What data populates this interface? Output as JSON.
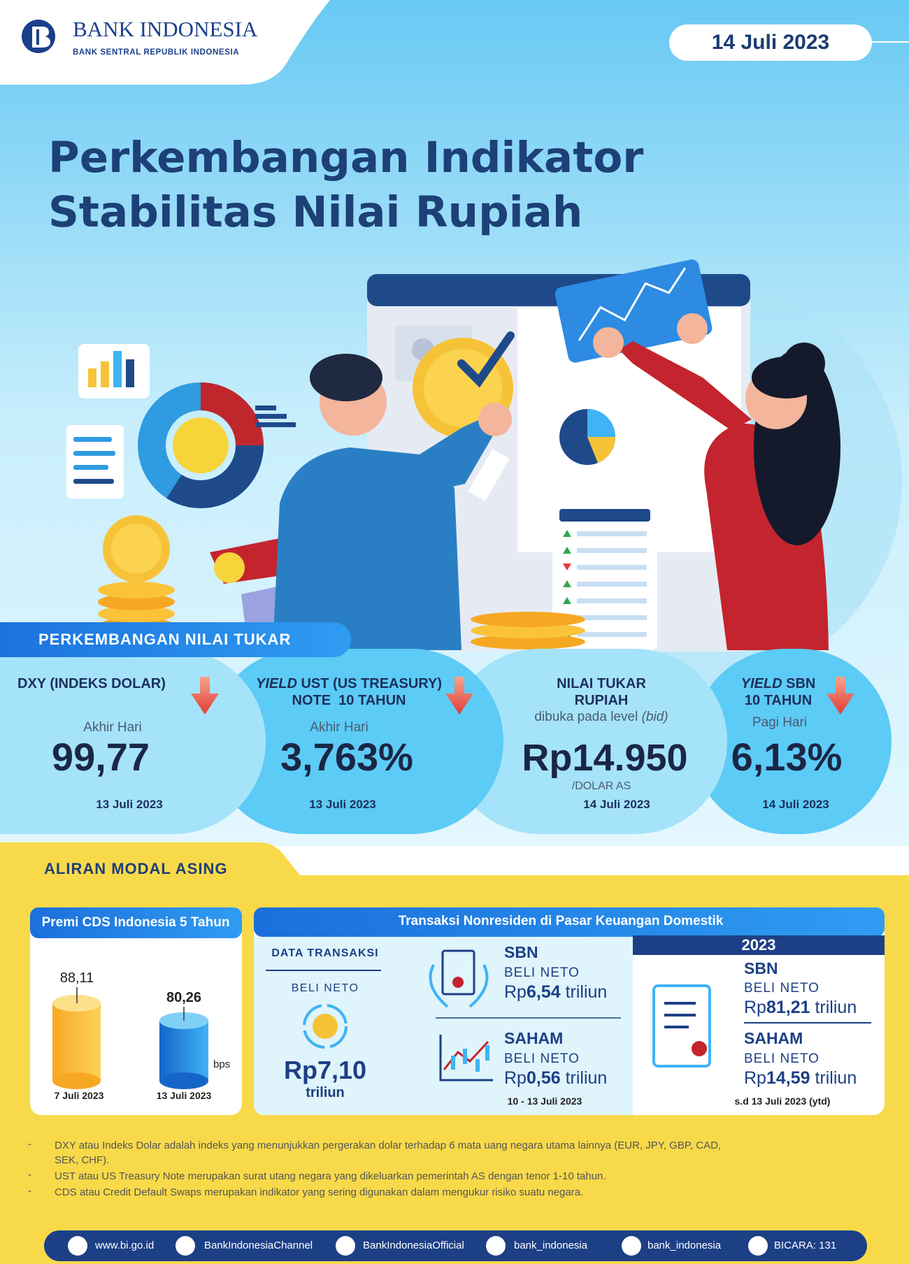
{
  "header": {
    "bank_name": "BANK INDONESIA",
    "bank_subtitle": "BANK SENTRAL REPUBLIK INDONESIA",
    "date": "14 Juli 2023"
  },
  "title": [
    "Perkembangan Indikator",
    "Stabilitas Nilai Rupiah"
  ],
  "exchange_rate": {
    "heading": "PERKEMBANGAN NILAI TUKAR",
    "cards": [
      {
        "title_lines": [
          "DXY (INDEKS DOLAR)"
        ],
        "subtitle": "Akhir Hari",
        "value": "99,77",
        "date": "13 Juli 2023"
      },
      {
        "title_italic": "YIELD",
        "title_lines": [
          "UST (US TREASURY)",
          "NOTE  10 TAHUN"
        ],
        "subtitle": "Akhir Hari",
        "value": "3,763%",
        "date": "13 Juli 2023"
      },
      {
        "title_lines": [
          "NILAI TUKAR",
          "RUPIAH"
        ],
        "subtitle": "dibuka pada level",
        "subtitle_italic": "(bid)",
        "value": "Rp14.950",
        "unit": "/DOLAR AS",
        "date": "14 Juli 2023"
      },
      {
        "title_italic": "YIELD",
        "title_lines": [
          "SBN",
          "10 TAHUN"
        ],
        "subtitle": "Pagi Hari",
        "value": "6,13%",
        "date": "14 Juli 2023"
      }
    ]
  },
  "capital_flows": {
    "heading": "ALIRAN MODAL ASING",
    "cds": {
      "title": "Premi CDS Indonesia 5 Tahun",
      "unit": "bps",
      "items": [
        {
          "label": "88,11",
          "date": "7 Juli 2023"
        },
        {
          "label": "80,26",
          "date": "13 Juli 2023"
        }
      ]
    },
    "transactions": {
      "title": "Transaksi Nonresiden di Pasar Keuangan Domestik",
      "summary": {
        "heading": "DATA TRANSAKSI",
        "label": "BELI NETO",
        "amount": "Rp7,10",
        "unit": "triliun"
      },
      "weekly": {
        "items": [
          {
            "name": "SBN",
            "label": "BELI NETO",
            "currency": "Rp",
            "amount": "6,54",
            "unit": "triliun"
          },
          {
            "name": "SAHAM",
            "label": "BELI NETO",
            "currency": "Rp",
            "amount": "0,56",
            "unit": "triliun"
          }
        ],
        "period": "10 - 13 Juli 2023"
      },
      "ytd": {
        "year": "2023",
        "items": [
          {
            "name": "SBN",
            "label": "BELI NETO",
            "currency": "Rp",
            "amount": "81,21",
            "unit": "triliun"
          },
          {
            "name": "SAHAM",
            "label": "BELI NETO",
            "currency": "Rp",
            "amount": "14,59",
            "unit": "triliun"
          }
        ],
        "period": "s.d 13 Juli 2023 (ytd)"
      }
    }
  },
  "notes": [
    "DXY atau Indeks Dolar adalah indeks yang menunjukkan pergerakan dolar terhadap 6 mata uang negara utama lainnya (EUR, JPY, GBP, CAD, SEK, CHF).",
    "UST atau US Treasury Note merupakan surat utang negara yang dikeluarkan pemerintah AS dengan tenor 1-10 tahun.",
    "CDS atau Credit Default Swaps merupakan indikator yang sering digunakan dalam mengukur risiko suatu negara."
  ],
  "footer": [
    "www.bi.go.id",
    "BankIndonesiaChannel",
    "BankIndonesiaOfficial",
    "bank_indonesia",
    "bank_indonesia",
    "BICARA: 131"
  ]
}
